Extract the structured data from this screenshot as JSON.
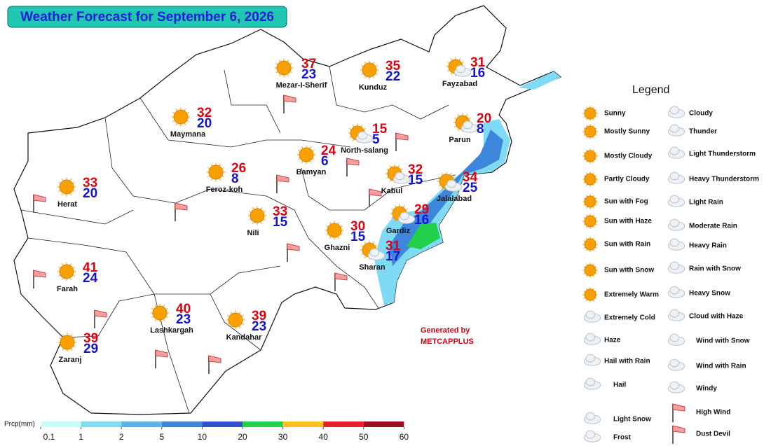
{
  "header": {
    "title": "Weather Forecast for September 6, 2026"
  },
  "cities": [
    {
      "name": "Mezar-I-Sherif",
      "max": 37,
      "min": 23
    },
    {
      "name": "Kunduz",
      "max": 35,
      "min": 22
    },
    {
      "name": "Fayzabad",
      "max": 31,
      "min": 16
    },
    {
      "name": "Maymana",
      "max": 32,
      "min": 20
    },
    {
      "name": "North-salang",
      "max": 15,
      "min": 5
    },
    {
      "name": "Parun",
      "max": 20,
      "min": 8
    },
    {
      "name": "Bamyan",
      "max": 24,
      "min": 6
    },
    {
      "name": "Feroz-koh",
      "max": 26,
      "min": 8
    },
    {
      "name": "Herat",
      "max": 33,
      "min": 20
    },
    {
      "name": "Kabul",
      "max": 32,
      "min": 15
    },
    {
      "name": "Jalalabad",
      "max": 34,
      "min": 25
    },
    {
      "name": "Nili",
      "max": 33,
      "min": 15
    },
    {
      "name": "Gardiz",
      "max": 29,
      "min": 16
    },
    {
      "name": "Ghazni",
      "max": 30,
      "min": 15
    },
    {
      "name": "Sharan",
      "max": 31,
      "min": 17
    },
    {
      "name": "Farah",
      "max": 41,
      "min": 24
    },
    {
      "name": "Lashkargah",
      "max": 40,
      "min": 23
    },
    {
      "name": "Kandahar",
      "max": 39,
      "min": 23
    },
    {
      "name": "Zaranj",
      "max": 39,
      "min": 29
    }
  ],
  "legend": {
    "title": "Legend",
    "left": [
      "Sunny",
      "Mostly Sunny",
      "Mostly Cloudy",
      "Partly Cloudy",
      "Sun with Fog",
      "Sun with Haze",
      "Sun with Rain",
      "Sun with Snow",
      "Extremely Warm",
      "Extremely Cold",
      "Haze",
      "Hail with Rain",
      "Hail",
      "Light Snow",
      "Frost"
    ],
    "right": [
      "Cloudy",
      "Thunder",
      "Light Thunderstorm",
      "Heavy Thunderstorm",
      "Light Rain",
      "Moderate Rain",
      "Heavy Rain",
      "Rain with Snow",
      "Heavy Snow",
      "Cloud with Haze",
      "Wind with Snow",
      "Wind with Rain",
      "Windy",
      "High Wind",
      "Dust Devil"
    ]
  },
  "precip_scale": {
    "label": "Prcp(mm)",
    "ticks": [
      0.1,
      1,
      2,
      5,
      10,
      20,
      30,
      40,
      50,
      60
    ],
    "colors": [
      "#c8fbfb",
      "#7fdaf5",
      "#5ab2e8",
      "#3c86dc",
      "#3350cc",
      "#22d04c",
      "#ffc020",
      "#e8202c",
      "#9a1020"
    ]
  },
  "credit": {
    "line1": "Generated by",
    "line2": "METCAPPLUS"
  }
}
